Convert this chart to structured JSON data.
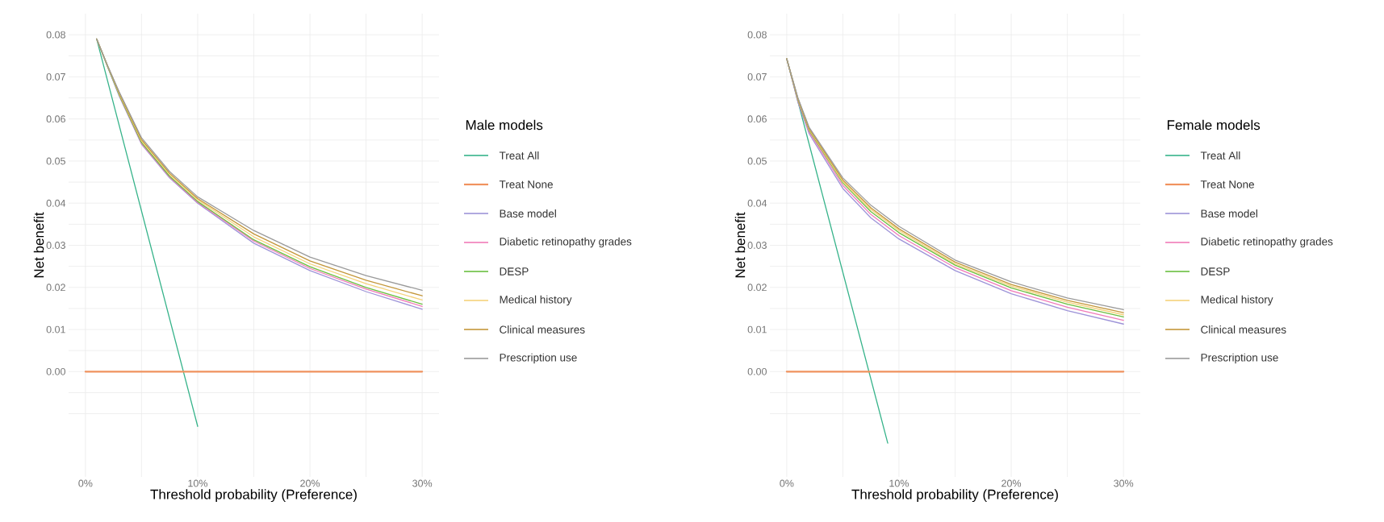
{
  "chart_data": [
    {
      "type": "line",
      "xlabel": "Threshold probability (Preference)",
      "ylabel": "Net benefit",
      "legend_title": "Male models",
      "legend": "right",
      "grid": true,
      "line_style": "solid",
      "xlim": [
        -0.015,
        0.315
      ],
      "ylim": [
        -0.025,
        0.085
      ],
      "xticks": [
        {
          "value": 0,
          "label": "0%"
        },
        {
          "value": 0.05,
          "label": null
        },
        {
          "value": 0.1,
          "label": "10%"
        },
        {
          "value": 0.15,
          "label": null
        },
        {
          "value": 0.2,
          "label": "20%"
        },
        {
          "value": 0.25,
          "label": null
        },
        {
          "value": 0.3,
          "label": "30%"
        }
      ],
      "yticks": [
        {
          "value": -0.01,
          "label": null
        },
        {
          "value": -0.005,
          "label": null
        },
        {
          "value": 0,
          "label": "0.00"
        },
        {
          "value": 0.005,
          "label": null
        },
        {
          "value": 0.01,
          "label": "0.01"
        },
        {
          "value": 0.015,
          "label": null
        },
        {
          "value": 0.02,
          "label": "0.02"
        },
        {
          "value": 0.025,
          "label": null
        },
        {
          "value": 0.03,
          "label": "0.03"
        },
        {
          "value": 0.035,
          "label": null
        },
        {
          "value": 0.04,
          "label": "0.04"
        },
        {
          "value": 0.045,
          "label": null
        },
        {
          "value": 0.05,
          "label": "0.05"
        },
        {
          "value": 0.055,
          "label": null
        },
        {
          "value": 0.06,
          "label": "0.06"
        },
        {
          "value": 0.065,
          "label": null
        },
        {
          "value": 0.07,
          "label": "0.07"
        },
        {
          "value": 0.075,
          "label": null
        },
        {
          "value": 0.08,
          "label": "0.08"
        }
      ],
      "x": [
        0.01,
        0.02,
        0.03,
        0.05,
        0.075,
        0.1,
        0.15,
        0.2,
        0.25,
        0.3
      ],
      "series": [
        {
          "name": "Treat All",
          "color": "#36b38a",
          "x": [
            0.01,
            0.1
          ],
          "values": [
            0.079,
            -0.013
          ]
        },
        {
          "name": "Treat None",
          "color": "#f0925e",
          "x": [
            0,
            0.3
          ],
          "values": [
            0,
            0
          ]
        },
        {
          "name": "Base model",
          "color": "#9d93d8",
          "values": [
            0.079,
            0.0722,
            0.0655,
            0.054,
            0.046,
            0.04,
            0.0305,
            0.024,
            0.019,
            0.0148
          ]
        },
        {
          "name": "Diabetic retinopathy grades",
          "color": "#f07ab8",
          "values": [
            null,
            null,
            0.0657,
            0.0542,
            0.0462,
            0.0402,
            0.031,
            0.0245,
            0.0196,
            0.0155
          ]
        },
        {
          "name": "DESP",
          "color": "#6abf3f",
          "values": [
            0.079,
            0.0723,
            0.0658,
            0.0544,
            0.0464,
            0.0404,
            0.0313,
            0.0249,
            0.02,
            0.016
          ]
        },
        {
          "name": "Medical history",
          "color": "#f5d27a",
          "values": [
            0.079,
            0.0724,
            0.066,
            0.0548,
            0.0468,
            0.0408,
            0.032,
            0.0256,
            0.0209,
            0.017
          ]
        },
        {
          "name": "Clinical measures",
          "color": "#c4973a",
          "values": [
            0.079,
            0.0724,
            0.0662,
            0.0551,
            0.0471,
            0.0411,
            0.0327,
            0.0263,
            0.0217,
            0.018
          ]
        },
        {
          "name": "Prescription use",
          "color": "#9a9a9a",
          "values": [
            0.079,
            0.0725,
            0.0665,
            0.0555,
            0.0475,
            0.0415,
            0.0335,
            0.0272,
            0.0228,
            0.0193
          ]
        }
      ]
    },
    {
      "type": "line",
      "xlabel": "Threshold probability (Preference)",
      "ylabel": "Net benefit",
      "legend_title": "Female models",
      "legend": "right",
      "grid": true,
      "line_style": "solid",
      "xlim": [
        -0.015,
        0.315
      ],
      "ylim": [
        -0.025,
        0.085
      ],
      "xticks": [
        {
          "value": 0,
          "label": "0%"
        },
        {
          "value": 0.05,
          "label": null
        },
        {
          "value": 0.1,
          "label": "10%"
        },
        {
          "value": 0.15,
          "label": null
        },
        {
          "value": 0.2,
          "label": "20%"
        },
        {
          "value": 0.25,
          "label": null
        },
        {
          "value": 0.3,
          "label": "30%"
        }
      ],
      "yticks": [
        {
          "value": -0.01,
          "label": null
        },
        {
          "value": -0.005,
          "label": null
        },
        {
          "value": 0,
          "label": "0.00"
        },
        {
          "value": 0.005,
          "label": null
        },
        {
          "value": 0.01,
          "label": "0.01"
        },
        {
          "value": 0.015,
          "label": null
        },
        {
          "value": 0.02,
          "label": "0.02"
        },
        {
          "value": 0.025,
          "label": null
        },
        {
          "value": 0.03,
          "label": "0.03"
        },
        {
          "value": 0.035,
          "label": null
        },
        {
          "value": 0.04,
          "label": "0.04"
        },
        {
          "value": 0.045,
          "label": null
        },
        {
          "value": 0.05,
          "label": "0.05"
        },
        {
          "value": 0.055,
          "label": null
        },
        {
          "value": 0.06,
          "label": "0.06"
        },
        {
          "value": 0.065,
          "label": null
        },
        {
          "value": 0.07,
          "label": "0.07"
        },
        {
          "value": 0.075,
          "label": null
        },
        {
          "value": 0.08,
          "label": "0.08"
        }
      ],
      "x": [
        0,
        0.01,
        0.02,
        0.05,
        0.075,
        0.1,
        0.15,
        0.2,
        0.25,
        0.3
      ],
      "series": [
        {
          "name": "Treat All",
          "color": "#36b38a",
          "x": [
            0,
            0.09
          ],
          "values": [
            0.0743,
            -0.017
          ]
        },
        {
          "name": "Treat None",
          "color": "#f0925e",
          "x": [
            0,
            0.3
          ],
          "values": [
            0,
            0
          ]
        },
        {
          "name": "Base model",
          "color": "#9d93d8",
          "values": [
            0.0743,
            0.064,
            0.0565,
            0.0435,
            0.0365,
            0.0315,
            0.024,
            0.0185,
            0.0145,
            0.0113
          ]
        },
        {
          "name": "Diabetic retinopathy grades",
          "color": "#f07ab8",
          "values": [
            0.0743,
            0.0643,
            0.0569,
            0.0442,
            0.0373,
            0.0323,
            0.0247,
            0.0192,
            0.0153,
            0.0122
          ]
        },
        {
          "name": "DESP",
          "color": "#6abf3f",
          "values": [
            0.0743,
            0.0645,
            0.0573,
            0.0448,
            0.038,
            0.033,
            0.0253,
            0.0199,
            0.016,
            0.013
          ]
        },
        {
          "name": "Medical history",
          "color": "#f5d27a",
          "values": [
            0.0743,
            0.0647,
            0.0575,
            0.0451,
            0.0385,
            0.0335,
            0.0256,
            0.0203,
            0.0165,
            0.0135
          ]
        },
        {
          "name": "Clinical measures",
          "color": "#c4973a",
          "values": [
            0.0743,
            0.0648,
            0.0577,
            0.0455,
            0.0389,
            0.0339,
            0.026,
            0.0207,
            0.0169,
            0.014
          ]
        },
        {
          "name": "Prescription use",
          "color": "#9a9a9a",
          "values": [
            0.0743,
            0.065,
            0.058,
            0.046,
            0.0395,
            0.0345,
            0.0265,
            0.0213,
            0.0175,
            0.0147
          ]
        }
      ]
    }
  ]
}
